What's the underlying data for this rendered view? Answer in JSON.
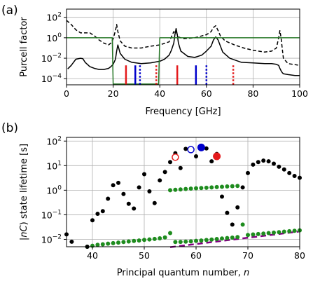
{
  "chart_data": [
    {
      "panel_label": "(a)",
      "type": "line",
      "xlabel": "Frequency [GHz]",
      "ylabel": "Purcell factor",
      "xlim": [
        0,
        100
      ],
      "ylim_log10": [
        -4.6,
        2.8
      ],
      "yscale": "log",
      "grid": true,
      "x_ticks": [
        0,
        20,
        40,
        60,
        80,
        100
      ],
      "y_ticks": [
        {
          "value": 0.0001,
          "mant": "10",
          "exp": "−4"
        },
        {
          "value": 0.01,
          "mant": "10",
          "exp": "−2"
        },
        {
          "value": 1,
          "mant": "10",
          "exp": "0"
        },
        {
          "value": 100,
          "mant": "10",
          "exp": "2"
        }
      ],
      "series": [
        {
          "style": "solid",
          "color": "#000000",
          "x": [
            0.5,
            2,
            4,
            6,
            7,
            8,
            10,
            12,
            14,
            16,
            18,
            19,
            20,
            21,
            21.5,
            22,
            23,
            25,
            28,
            32,
            36,
            40,
            42,
            44,
            45,
            46,
            46.5,
            47,
            47.5,
            48,
            49,
            52,
            55,
            58,
            60,
            62,
            63,
            64,
            65,
            66,
            67,
            70,
            75,
            80,
            85,
            88,
            90,
            91,
            91.5,
            92,
            92.5,
            93,
            95,
            98,
            100
          ],
          "y": [
            0.0009,
            0.002,
            0.008,
            0.01,
            0.009,
            0.004,
            0.0015,
            0.001,
            0.0008,
            0.0008,
            0.001,
            0.0015,
            0.0025,
            0.008,
            0.05,
            0.2,
            0.03,
            0.008,
            0.004,
            0.003,
            0.0035,
            0.005,
            0.008,
            0.02,
            0.06,
            0.3,
            2,
            8,
            2,
            0.3,
            0.05,
            0.015,
            0.012,
            0.02,
            0.05,
            0.15,
            0.6,
            1.2,
            0.6,
            0.15,
            0.04,
            0.01,
            0.004,
            0.0035,
            0.003,
            0.003,
            0.0025,
            0.002,
            0.001,
            0.0006,
            0.0004,
            0.0003,
            0.00025,
            0.0002,
            0.0002
          ]
        },
        {
          "style": "dashed",
          "color": "#000000",
          "x": [
            0,
            2,
            4,
            6,
            8,
            10,
            12,
            14,
            16,
            18,
            19,
            20,
            21,
            21.5,
            22,
            23,
            25,
            28,
            32,
            36,
            40,
            44,
            45,
            46,
            46.5,
            47,
            47.5,
            48,
            50,
            55,
            60,
            62,
            63,
            64,
            65,
            66,
            68,
            72,
            76,
            80,
            85,
            88,
            90,
            91,
            91.5,
            92,
            92.5,
            93,
            95,
            100
          ],
          "y": [
            50,
            20,
            6,
            3,
            3,
            3,
            1.5,
            0.6,
            0.3,
            0.2,
            0.3,
            0.8,
            5,
            20,
            4,
            0.5,
            0.15,
            0.1,
            0.1,
            0.15,
            0.2,
            0.4,
            1.2,
            4,
            3,
            4,
            2,
            1.2,
            0.8,
            1,
            2,
            4,
            10,
            15,
            5,
            1.5,
            0.5,
            0.2,
            0.1,
            0.06,
            0.04,
            0.05,
            0.1,
            1,
            5,
            1,
            0.1,
            0.01,
            0.003,
            0.002
          ]
        },
        {
          "style": "solid",
          "color": "#2a7a2a",
          "x": [
            0,
            19.6,
            20,
            21,
            39.5,
            40,
            100
          ],
          "y": [
            1,
            1,
            3e-05,
            3e-05,
            3e-05,
            1,
            1
          ]
        }
      ],
      "markers": [
        {
          "x": 25.5,
          "color": "#e41a1c",
          "style": "solid"
        },
        {
          "x": 29.5,
          "color": "#0000cc",
          "style": "solid"
        },
        {
          "x": 31.5,
          "color": "#0000cc",
          "style": "dotted"
        },
        {
          "x": 38.5,
          "color": "#e41a1c",
          "style": "dotted"
        },
        {
          "x": 47.5,
          "color": "#e41a1c",
          "style": "solid"
        },
        {
          "x": 55.5,
          "color": "#0000cc",
          "style": "solid"
        },
        {
          "x": 60,
          "color": "#0000cc",
          "style": "dotted"
        },
        {
          "x": 71.5,
          "color": "#e41a1c",
          "style": "dotted"
        }
      ]
    },
    {
      "panel_label": "(b)",
      "type": "scatter",
      "xlabel_prefix": "Principal quantum number, ",
      "xlabel_var": "n",
      "ylabel_pre": "|",
      "ylabel_var": "nC",
      "ylabel_post": ") state lifetime [s]",
      "xlim": [
        35,
        80
      ],
      "ylim_log10": [
        -2.3,
        2.15
      ],
      "yscale": "log",
      "grid": true,
      "x_ticks": [
        40,
        50,
        60,
        70,
        80
      ],
      "y_ticks": [
        {
          "value": 0.01,
          "mant": "10",
          "exp": "−2"
        },
        {
          "value": 0.1,
          "mant": "10",
          "exp": "−1"
        },
        {
          "value": 1,
          "mant": "10",
          "exp": "0"
        },
        {
          "value": 10,
          "mant": "10",
          "exp": "1"
        },
        {
          "value": 100,
          "mant": "10",
          "exp": "2"
        }
      ],
      "black_points": {
        "x": [
          35,
          36,
          39,
          40,
          41,
          42,
          43,
          44,
          45,
          46,
          47,
          48,
          49,
          50,
          51,
          52,
          53,
          54,
          55,
          56,
          57,
          58,
          59,
          60,
          61,
          62,
          63,
          64,
          65,
          66,
          67,
          68,
          69,
          70,
          71,
          72,
          73,
          74,
          75,
          76,
          77,
          78,
          79,
          80
        ],
        "y": [
          0.016,
          0.008,
          0.005,
          0.06,
          0.11,
          0.14,
          0.45,
          1.6,
          2.0,
          0.7,
          0.28,
          0.18,
          1.3,
          4.5,
          0.9,
          0.3,
          2.5,
          5.5,
          14,
          32,
          8,
          48,
          40,
          24,
          60,
          50,
          15,
          30,
          0.55,
          0.12,
          0.04,
          0.2,
          1.3,
          5,
          11,
          14,
          16,
          15,
          12,
          9,
          7,
          5,
          3.8,
          3.2
        ]
      },
      "green_series": [
        {
          "x": [
            39,
            40,
            41,
            42,
            43,
            44,
            45,
            46,
            47,
            48,
            49,
            50,
            51,
            52,
            53,
            54,
            55,
            56,
            57,
            58,
            59,
            60,
            61,
            62,
            63,
            64,
            65,
            66,
            67,
            68,
            69,
            70,
            71,
            72,
            73,
            74,
            75,
            76,
            77,
            78,
            79,
            80
          ],
          "y": [
            0.005,
            0.0055,
            0.006,
            0.0063,
            0.0067,
            0.007,
            0.0074,
            0.0078,
            0.0082,
            0.0086,
            0.009,
            0.0095,
            0.0099,
            0.0104,
            0.011,
            0.012,
            0.018,
            0.0078,
            0.0079,
            0.0081,
            0.0083,
            0.0087,
            0.009,
            0.0094,
            0.0098,
            0.0103,
            0.0108,
            0.0113,
            0.0118,
            0.0124,
            0.04,
            0.0151,
            0.0158,
            0.0165,
            0.0172,
            0.018,
            0.0188,
            0.0196,
            0.0205,
            0.0214,
            0.0223,
            0.0233
          ]
        },
        {
          "x": [
            55,
            56,
            57,
            58,
            59,
            60,
            61,
            62,
            63,
            64,
            65,
            66,
            67,
            68
          ],
          "y": [
            1.0,
            1.04,
            1.08,
            1.12,
            1.16,
            1.2,
            1.23,
            1.26,
            1.3,
            1.34,
            1.38,
            1.42,
            1.46,
            1.5
          ]
        }
      ],
      "dashed_line": {
        "color": "#800080",
        "x": [
          55,
          80
        ],
        "y": [
          0.0048,
          0.021
        ]
      },
      "open_circles": [
        {
          "x": 56,
          "y": 22,
          "color": "#e41a1c"
        },
        {
          "x": 59,
          "y": 45,
          "color": "#0000cc"
        }
      ],
      "filled_circles": [
        {
          "x": 61,
          "y": 55,
          "color": "#0000cc",
          "size": "large"
        },
        {
          "x": 64,
          "y": 24,
          "color": "#e41a1c",
          "size": "large"
        }
      ]
    }
  ]
}
